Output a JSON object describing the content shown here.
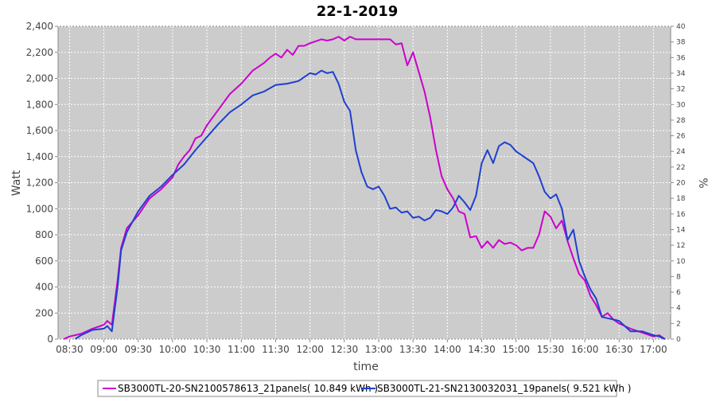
{
  "chart_data": {
    "type": "line",
    "title": "22-1-2019",
    "xlabel": "time",
    "ylabel": "Watt",
    "y2label": "%",
    "ylim": [
      0,
      2400
    ],
    "y2lim": [
      0,
      40
    ],
    "xlim": [
      "08:20",
      "17:15"
    ],
    "grid": true,
    "legend_position": "bottom",
    "x_ticks": [
      "08:30",
      "09:00",
      "09:30",
      "10:00",
      "10:30",
      "11:00",
      "11:30",
      "12:00",
      "12:30",
      "13:00",
      "13:30",
      "14:00",
      "14:30",
      "15:00",
      "15:30",
      "16:00",
      "16:30",
      "17:00"
    ],
    "y_ticks": [
      "0",
      "200",
      "400",
      "600",
      "800",
      "1,000",
      "1,200",
      "1,400",
      "1,600",
      "1,800",
      "2,000",
      "2,200",
      "2,400"
    ],
    "y2_ticks": [
      "0",
      "2",
      "4",
      "6",
      "8",
      "10",
      "12",
      "14",
      "16",
      "18",
      "20",
      "22",
      "24",
      "26",
      "28",
      "30",
      "32",
      "34",
      "36",
      "38",
      "40"
    ],
    "series": [
      {
        "name": "SB3000TL-20-SN2100578613_21panels( 10.849 kWh )",
        "color": "#cc00cc",
        "points": [
          [
            "08:25",
            0
          ],
          [
            "08:30",
            20
          ],
          [
            "08:40",
            40
          ],
          [
            "08:50",
            80
          ],
          [
            "09:00",
            110
          ],
          [
            "09:03",
            140
          ],
          [
            "09:07",
            110
          ],
          [
            "09:12",
            450
          ],
          [
            "09:15",
            700
          ],
          [
            "09:20",
            850
          ],
          [
            "09:30",
            950
          ],
          [
            "09:40",
            1080
          ],
          [
            "09:50",
            1150
          ],
          [
            "10:00",
            1240
          ],
          [
            "10:05",
            1340
          ],
          [
            "10:10",
            1400
          ],
          [
            "10:15",
            1450
          ],
          [
            "10:20",
            1540
          ],
          [
            "10:25",
            1560
          ],
          [
            "10:30",
            1640
          ],
          [
            "10:40",
            1760
          ],
          [
            "10:50",
            1880
          ],
          [
            "11:00",
            1960
          ],
          [
            "11:10",
            2060
          ],
          [
            "11:20",
            2120
          ],
          [
            "11:25",
            2160
          ],
          [
            "11:30",
            2190
          ],
          [
            "11:35",
            2160
          ],
          [
            "11:40",
            2220
          ],
          [
            "11:45",
            2180
          ],
          [
            "11:50",
            2250
          ],
          [
            "11:55",
            2250
          ],
          [
            "12:00",
            2270
          ],
          [
            "12:10",
            2300
          ],
          [
            "12:15",
            2290
          ],
          [
            "12:20",
            2300
          ],
          [
            "12:25",
            2320
          ],
          [
            "12:30",
            2290
          ],
          [
            "12:35",
            2320
          ],
          [
            "12:40",
            2300
          ],
          [
            "12:50",
            2300
          ],
          [
            "13:00",
            2300
          ],
          [
            "13:10",
            2300
          ],
          [
            "13:15",
            2260
          ],
          [
            "13:20",
            2270
          ],
          [
            "13:25",
            2100
          ],
          [
            "13:30",
            2200
          ],
          [
            "13:35",
            2050
          ],
          [
            "13:40",
            1900
          ],
          [
            "13:45",
            1700
          ],
          [
            "13:50",
            1450
          ],
          [
            "13:55",
            1250
          ],
          [
            "14:00",
            1150
          ],
          [
            "14:05",
            1080
          ],
          [
            "14:10",
            980
          ],
          [
            "14:15",
            960
          ],
          [
            "14:20",
            780
          ],
          [
            "14:25",
            790
          ],
          [
            "14:30",
            700
          ],
          [
            "14:35",
            750
          ],
          [
            "14:40",
            700
          ],
          [
            "14:45",
            760
          ],
          [
            "14:50",
            730
          ],
          [
            "14:55",
            740
          ],
          [
            "15:00",
            720
          ],
          [
            "15:05",
            680
          ],
          [
            "15:10",
            700
          ],
          [
            "15:15",
            700
          ],
          [
            "15:20",
            800
          ],
          [
            "15:25",
            980
          ],
          [
            "15:30",
            940
          ],
          [
            "15:35",
            850
          ],
          [
            "15:40",
            910
          ],
          [
            "15:45",
            750
          ],
          [
            "15:50",
            620
          ],
          [
            "15:55",
            500
          ],
          [
            "16:00",
            450
          ],
          [
            "16:05",
            330
          ],
          [
            "16:10",
            260
          ],
          [
            "16:15",
            170
          ],
          [
            "16:20",
            200
          ],
          [
            "16:25",
            150
          ],
          [
            "16:30",
            120
          ],
          [
            "16:40",
            80
          ],
          [
            "16:50",
            50
          ],
          [
            "17:00",
            20
          ],
          [
            "17:05",
            30
          ],
          [
            "17:10",
            0
          ]
        ]
      },
      {
        "name": "SB3000TL-21-SN2130032031_19panels( 9.521 kWh )",
        "color": "#1f3fd0",
        "points": [
          [
            "08:35",
            0
          ],
          [
            "08:40",
            30
          ],
          [
            "08:50",
            70
          ],
          [
            "09:00",
            80
          ],
          [
            "09:03",
            100
          ],
          [
            "09:07",
            60
          ],
          [
            "09:12",
            400
          ],
          [
            "09:15",
            680
          ],
          [
            "09:20",
            820
          ],
          [
            "09:30",
            980
          ],
          [
            "09:40",
            1100
          ],
          [
            "09:50",
            1170
          ],
          [
            "10:00",
            1260
          ],
          [
            "10:10",
            1340
          ],
          [
            "10:20",
            1450
          ],
          [
            "10:30",
            1550
          ],
          [
            "10:40",
            1650
          ],
          [
            "10:50",
            1740
          ],
          [
            "11:00",
            1800
          ],
          [
            "11:10",
            1870
          ],
          [
            "11:20",
            1900
          ],
          [
            "11:30",
            1950
          ],
          [
            "11:40",
            1960
          ],
          [
            "11:50",
            1980
          ],
          [
            "12:00",
            2040
          ],
          [
            "12:05",
            2030
          ],
          [
            "12:10",
            2060
          ],
          [
            "12:15",
            2040
          ],
          [
            "12:20",
            2050
          ],
          [
            "12:25",
            1960
          ],
          [
            "12:30",
            1820
          ],
          [
            "12:35",
            1750
          ],
          [
            "12:40",
            1450
          ],
          [
            "12:45",
            1280
          ],
          [
            "12:50",
            1170
          ],
          [
            "12:55",
            1150
          ],
          [
            "13:00",
            1170
          ],
          [
            "13:05",
            1100
          ],
          [
            "13:10",
            1000
          ],
          [
            "13:15",
            1010
          ],
          [
            "13:20",
            970
          ],
          [
            "13:25",
            980
          ],
          [
            "13:30",
            930
          ],
          [
            "13:35",
            940
          ],
          [
            "13:40",
            910
          ],
          [
            "13:45",
            930
          ],
          [
            "13:50",
            990
          ],
          [
            "13:55",
            980
          ],
          [
            "14:00",
            960
          ],
          [
            "14:05",
            1010
          ],
          [
            "14:10",
            1100
          ],
          [
            "14:15",
            1050
          ],
          [
            "14:20",
            990
          ],
          [
            "14:25",
            1100
          ],
          [
            "14:30",
            1350
          ],
          [
            "14:35",
            1450
          ],
          [
            "14:40",
            1350
          ],
          [
            "14:45",
            1480
          ],
          [
            "14:50",
            1510
          ],
          [
            "14:55",
            1490
          ],
          [
            "15:00",
            1440
          ],
          [
            "15:05",
            1410
          ],
          [
            "15:10",
            1380
          ],
          [
            "15:15",
            1350
          ],
          [
            "15:20",
            1250
          ],
          [
            "15:25",
            1130
          ],
          [
            "15:30",
            1080
          ],
          [
            "15:35",
            1110
          ],
          [
            "15:40",
            1000
          ],
          [
            "15:45",
            760
          ],
          [
            "15:50",
            840
          ],
          [
            "15:55",
            600
          ],
          [
            "16:00",
            480
          ],
          [
            "16:05",
            380
          ],
          [
            "16:10",
            310
          ],
          [
            "16:15",
            170
          ],
          [
            "16:20",
            160
          ],
          [
            "16:25",
            150
          ],
          [
            "16:30",
            140
          ],
          [
            "16:40",
            60
          ],
          [
            "16:50",
            60
          ],
          [
            "17:00",
            30
          ],
          [
            "17:05",
            20
          ],
          [
            "17:10",
            0
          ]
        ]
      }
    ]
  }
}
